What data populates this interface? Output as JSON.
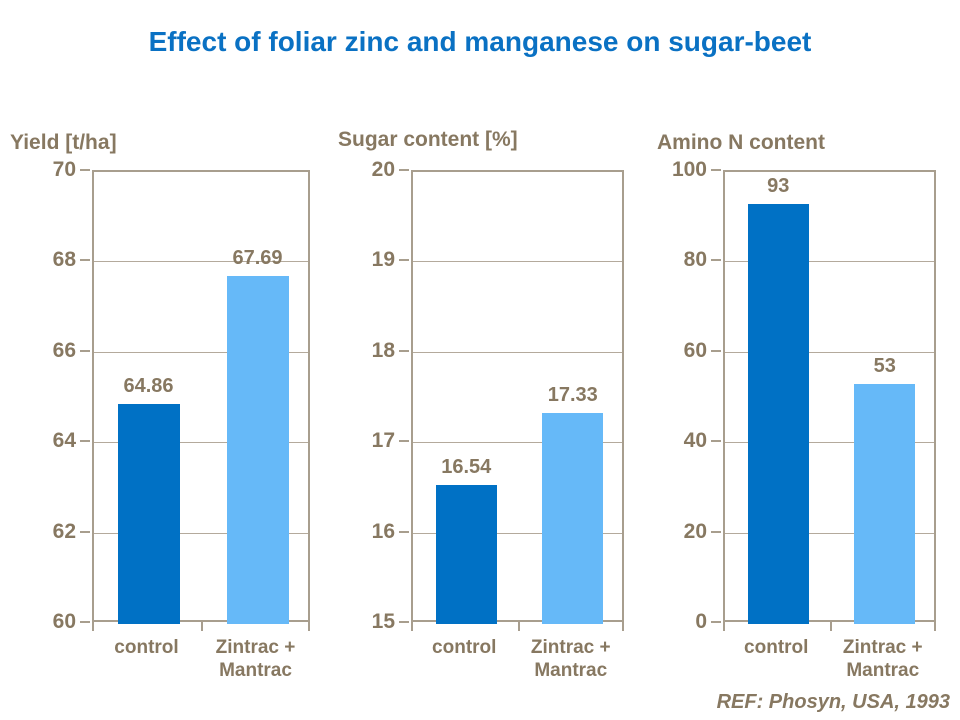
{
  "page": {
    "title": "Effect of foliar zinc and manganese on sugar-beet",
    "reference": "REF: Phosyn, USA, 1993"
  },
  "colors": {
    "title_blue": "#0a71c3",
    "bar_control": "#0071c5",
    "bar_treatment": "#66b9f8",
    "label_brown": "#877861",
    "gridline": "#b4aa9c",
    "plot_border": "#a89e8e"
  },
  "chart_data": [
    {
      "type": "bar",
      "title": "Yield [t/ha]",
      "categories": [
        "control",
        "Zintrac +\nMantrac"
      ],
      "values": [
        64.86,
        67.69
      ],
      "value_labels": [
        "64.86",
        "67.69"
      ],
      "ylim": [
        60,
        70
      ],
      "yticks": [
        60,
        62,
        64,
        66,
        68,
        70
      ],
      "grid": true,
      "legend_position": "none",
      "bar_colors": [
        "#0071c5",
        "#66b9f8"
      ]
    },
    {
      "type": "bar",
      "title": "Sugar content [%]",
      "categories": [
        "control",
        "Zintrac +\nMantrac"
      ],
      "values": [
        16.54,
        17.33
      ],
      "value_labels": [
        "16.54",
        "17.33"
      ],
      "ylim": [
        15,
        20
      ],
      "yticks": [
        15,
        16,
        17,
        18,
        19,
        20
      ],
      "grid": true,
      "legend_position": "none",
      "bar_colors": [
        "#0071c5",
        "#66b9f8"
      ]
    },
    {
      "type": "bar",
      "title": "Amino N content",
      "categories": [
        "control",
        "Zintrac +\nMantrac"
      ],
      "values": [
        93,
        53
      ],
      "value_labels": [
        "93",
        "53"
      ],
      "ylim": [
        0,
        100
      ],
      "yticks": [
        0,
        20,
        40,
        60,
        80,
        100
      ],
      "grid": true,
      "legend_position": "none",
      "bar_colors": [
        "#0071c5",
        "#66b9f8"
      ]
    }
  ]
}
